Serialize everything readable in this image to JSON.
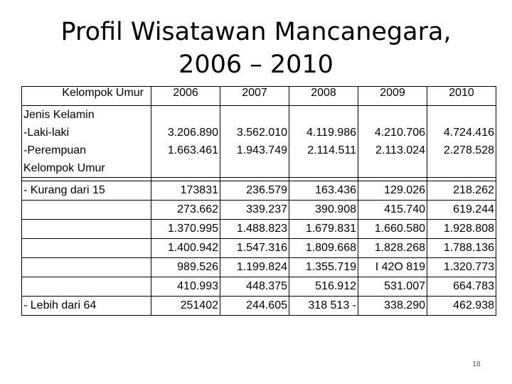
{
  "slide": {
    "title_line1": "Profil Wisatawan Mancanegara,",
    "title_line2": "2006 – 2010",
    "page_number": "18"
  },
  "table": {
    "header_label": "Kelompok Umur",
    "years": [
      "2006",
      "2007",
      "2008",
      "2009",
      "2010"
    ],
    "gender_section_label": "Jenis Kelamin",
    "gender_rows": [
      {
        "label": "-Laki-laki",
        "values": [
          "3.206.890",
          "3.562.010",
          "4.119.986",
          "4.210.706",
          "4.724.416"
        ]
      },
      {
        "label": "-Perempuan",
        "values": [
          "1.663.461",
          "1.943.749",
          "2.114.511",
          "2.113.024",
          "2.278.528"
        ]
      }
    ],
    "age_section_label": "Kelompok Umur",
    "age_rows": [
      {
        "label": "- Kurang dari 15",
        "values": [
          "173831",
          "236.579",
          "163.436",
          "129.026",
          "218.262"
        ]
      },
      {
        "label": "",
        "values": [
          "273.662",
          "339.237",
          "390.908",
          "415.740",
          "619.244"
        ]
      },
      {
        "label": "",
        "values": [
          "1.370.995",
          "1.488.823",
          "1.679.831",
          "1.660.580",
          "1.928.808"
        ]
      },
      {
        "label": "",
        "values": [
          "1.400.942",
          "1.547.316",
          "1.809.668",
          "1.828.268",
          "1.788.136"
        ]
      },
      {
        "label": "",
        "values": [
          "989.526",
          "1.199.824",
          "1.355.719",
          "I 42O 819",
          "1.320.773"
        ]
      },
      {
        "label": "",
        "values": [
          "410.993",
          "448.375",
          "516.912",
          "531.007",
          "664.783"
        ]
      },
      {
        "label": "- Lebih dari 64",
        "values": [
          "251402",
          "244.605",
          "318 513 -",
          "338.290",
          "462.938"
        ]
      }
    ]
  }
}
